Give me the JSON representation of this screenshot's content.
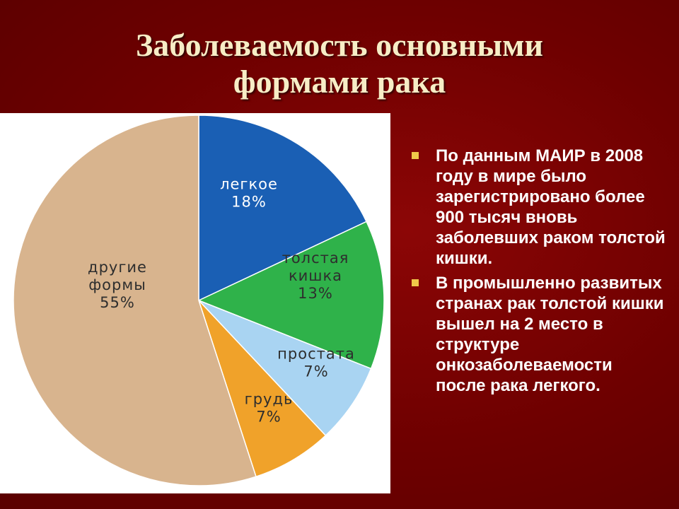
{
  "title": {
    "line1": "Заболеваемость основными",
    "line2": "формами рака"
  },
  "chart_data": {
    "type": "pie",
    "title": "",
    "categories": [
      "легкое",
      "толстая кишка",
      "простата",
      "грудь",
      "другие формы"
    ],
    "values": [
      18,
      13,
      7,
      7,
      55
    ],
    "slices": [
      {
        "name": "легкое",
        "value": 18,
        "label_lines": [
          "легкое",
          "18%"
        ],
        "color": "#1a5fb4"
      },
      {
        "name": "толстая кишка",
        "value": 13,
        "label_lines": [
          "толстая",
          "кишка",
          "13%"
        ],
        "color": "#2fb24a"
      },
      {
        "name": "простата",
        "value": 7,
        "label_lines": [
          "простата",
          "7%"
        ],
        "color": "#a9d4f2"
      },
      {
        "name": "грудь",
        "value": 7,
        "label_lines": [
          "грудь",
          "7%"
        ],
        "color": "#f0a22a"
      },
      {
        "name": "другие формы",
        "value": 55,
        "label_lines": [
          "другие",
          "формы",
          "55%"
        ],
        "color": "#d8b48e"
      }
    ],
    "start_angle_deg": 0,
    "direction": "clockwise"
  },
  "bullets": [
    "По данным МАИР в 2008 году в мире было зарегистрировано более 900 тысяч вновь заболевших раком толстой кишки.",
    "В промышленно развитых странах  рак толстой кишки вышел на 2 место в структуре онкозаболеваемости после рака легкого."
  ],
  "colors": {
    "background": "#6e0000",
    "title": "#f7edc6",
    "bullet_marker": "#f0c94a",
    "text": "#ffffff"
  }
}
